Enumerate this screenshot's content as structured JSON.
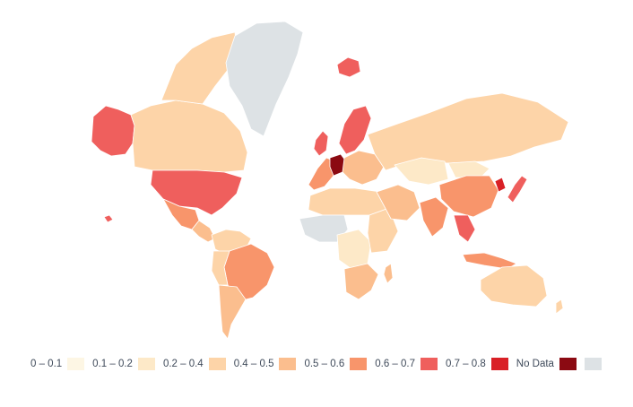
{
  "legend": [
    {
      "label": "0 – 0.1",
      "color": "#fdf6e4"
    },
    {
      "label": "0.1 – 0.2",
      "color": "#fde9c8"
    },
    {
      "label": "0.2 – 0.4",
      "color": "#fdd4a8"
    },
    {
      "label": "0.4 – 0.5",
      "color": "#fbbe8e"
    },
    {
      "label": "0.5 – 0.6",
      "color": "#f8956b"
    },
    {
      "label": "0.6 – 0.7",
      "color": "#ef5f5d"
    },
    {
      "label": "0.7 – 0.8",
      "color": "#d92026"
    },
    {
      "label": "No Data",
      "color": "#8b0a12"
    },
    {
      "label": "",
      "color": "#dde2e5"
    }
  ],
  "regions": [
    {
      "name": "alaska",
      "bin": 5
    },
    {
      "name": "canada",
      "bin": 2
    },
    {
      "name": "canadian-arctic-islands",
      "bin": 2
    },
    {
      "name": "greenland",
      "bin": 8
    },
    {
      "name": "usa",
      "bin": 5
    },
    {
      "name": "hawaii",
      "bin": 5
    },
    {
      "name": "mexico",
      "bin": 4
    },
    {
      "name": "central-america",
      "bin": 3
    },
    {
      "name": "colombia-venezuela",
      "bin": 2
    },
    {
      "name": "brazil",
      "bin": 4
    },
    {
      "name": "peru-bolivia",
      "bin": 2
    },
    {
      "name": "argentina",
      "bin": 3
    },
    {
      "name": "iceland",
      "bin": 5
    },
    {
      "name": "uk",
      "bin": 5
    },
    {
      "name": "scandinavia",
      "bin": 5
    },
    {
      "name": "western-europe",
      "bin": 4
    },
    {
      "name": "germany",
      "bin": 7
    },
    {
      "name": "eastern-europe",
      "bin": 3
    },
    {
      "name": "russia",
      "bin": 2
    },
    {
      "name": "north-africa",
      "bin": 2
    },
    {
      "name": "west-africa",
      "bin": 8
    },
    {
      "name": "central-africa",
      "bin": 1
    },
    {
      "name": "east-africa",
      "bin": 2
    },
    {
      "name": "southern-africa",
      "bin": 3
    },
    {
      "name": "madagascar",
      "bin": 3
    },
    {
      "name": "middle-east",
      "bin": 3
    },
    {
      "name": "central-asia",
      "bin": 1
    },
    {
      "name": "mongolia",
      "bin": 1
    },
    {
      "name": "india",
      "bin": 4
    },
    {
      "name": "china",
      "bin": 4
    },
    {
      "name": "korea",
      "bin": 6
    },
    {
      "name": "japan",
      "bin": 5
    },
    {
      "name": "southeast-asia",
      "bin": 5
    },
    {
      "name": "indonesia",
      "bin": 4
    },
    {
      "name": "australia",
      "bin": 2
    },
    {
      "name": "new-zealand",
      "bin": 2
    }
  ]
}
